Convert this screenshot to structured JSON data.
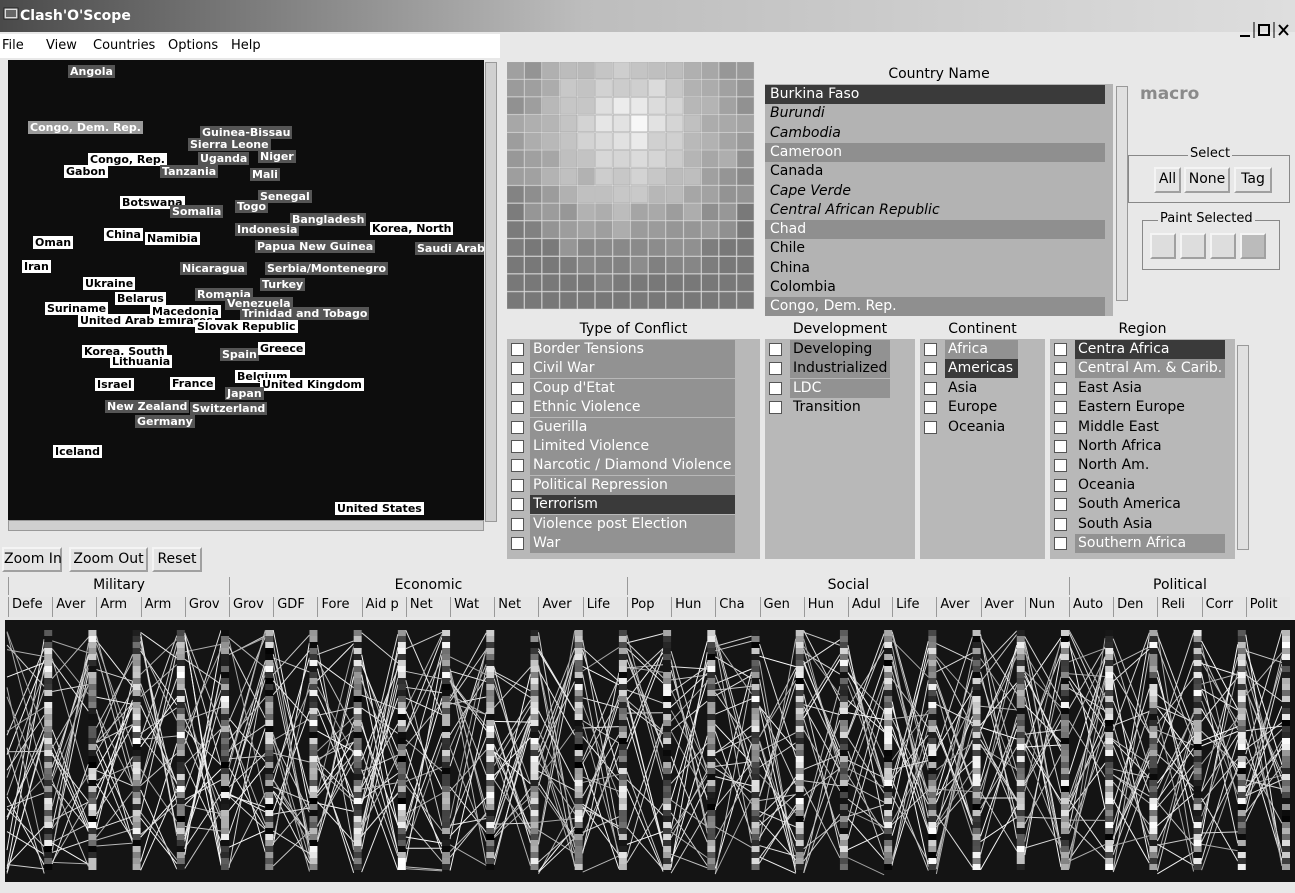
{
  "window": {
    "title": "Clash'O'Scope"
  },
  "menu": [
    "File",
    "View",
    "Countries",
    "Options",
    "Help"
  ],
  "map": {
    "labels": [
      "Angola",
      "Congo, Dem. Rep.",
      "Guinea-Bissau",
      "Sierra Leone",
      "Congo, Rep.",
      "Uganda",
      "Niger",
      "Gabon",
      "Tanzania",
      "Mali",
      "Botswana",
      "Senegal",
      "Togo",
      "Somalia",
      "Bangladesh",
      "Korea, North",
      "Oman",
      "China",
      "Namibia",
      "Indonesia",
      "Papua New Guinea",
      "Saudi Arabi",
      "Iran",
      "Nicaragua",
      "Serbia/Montenegro",
      "Ukraine",
      "Turkey",
      "Romania",
      "Belarus",
      "Venezuela",
      "Suriname",
      "Trinidad and Tobago",
      "United Arab Emirates",
      "Macedonia",
      "Slovak Republic",
      "Korea, South",
      "Spain",
      "Greece",
      "Lithuania",
      "Israel",
      "France",
      "Belgium",
      "United Kingdom",
      "Japan",
      "New Zealand",
      "Switzerland",
      "Germany",
      "Iceland",
      "United States"
    ]
  },
  "map_buttons": [
    "Zoom In",
    "Zoom Out",
    "Reset"
  ],
  "country_list": {
    "header": "Country Name",
    "items": [
      "Burkina Faso",
      "Burundi",
      "Cambodia",
      "Cameroon",
      "Canada",
      "Cape Verde",
      "Central African Republic",
      "Chad",
      "Chile",
      "China",
      "Colombia",
      "Congo, Dem. Rep."
    ]
  },
  "macro": "macro",
  "select": {
    "title": "Select",
    "buttons": [
      "All",
      "None",
      "Tag"
    ]
  },
  "paint": {
    "title": "Paint Selected"
  },
  "filters": [
    {
      "header": "Type of Conflict",
      "items": [
        "Border Tensions",
        "Civil War",
        "Coup d'Etat",
        "Ethnic Violence",
        "Guerilla",
        "Limited Violence",
        "Narcotic / Diamond Violence",
        "Political Repression",
        "Terrorism",
        "Violence post Election",
        "War"
      ]
    },
    {
      "header": "Development",
      "items": [
        "Developing",
        "Industrialized",
        "LDC",
        "Transition"
      ]
    },
    {
      "header": "Continent",
      "items": [
        "Africa",
        "Americas",
        "Asia",
        "Europe",
        "Oceania"
      ]
    },
    {
      "header": "Region",
      "items": [
        "Centra Africa",
        "Central Am. & Carib.",
        "East Asia",
        "Eastern Europe",
        "Middle East",
        "North Africa",
        "North Am.",
        "Oceania",
        "South America",
        "South Asia",
        "Southern Africa"
      ]
    }
  ],
  "parallel": {
    "groups": [
      "Military",
      "Economic",
      "Social",
      "Political"
    ],
    "axes": [
      "Defe",
      "Aver",
      "Arm",
      "Arm",
      "Grov",
      "Grov",
      "GDF",
      "Fore",
      "Aid p",
      "Net",
      "Wat",
      "Net",
      "Aver",
      "Life",
      "Pop",
      "Hun",
      "Cha",
      "Gen",
      "Hun",
      "Adul",
      "Life",
      "Aver",
      "Aver",
      "Nun",
      "Auto",
      "Den",
      "Reli",
      "Corr",
      "Polit"
    ]
  }
}
